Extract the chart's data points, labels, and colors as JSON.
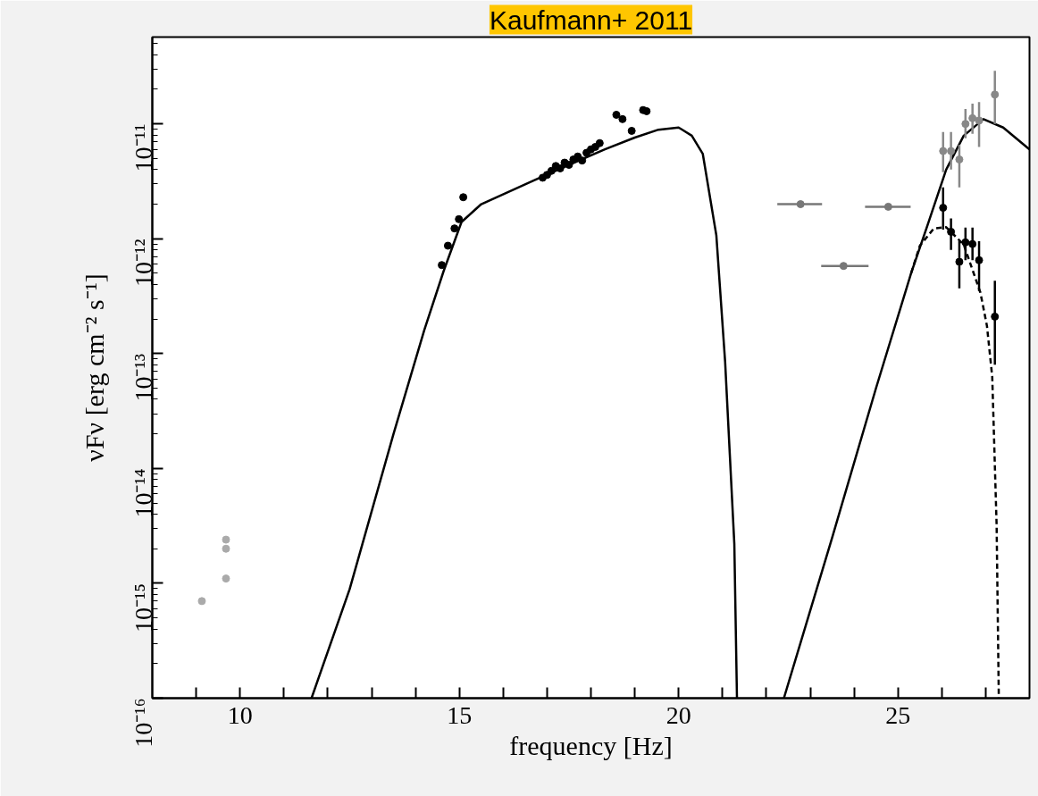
{
  "chart_data": {
    "type": "scatter",
    "title": "Kaufmann+ 2011",
    "xlabel": "frequency [Hz]",
    "ylabel": "νFν [erg cm⁻² s⁻¹]",
    "log": "y",
    "grid": false,
    "marker": "circle",
    "xlim": [
      8,
      28
    ],
    "ylim": [
      1e-16,
      5.7e-11
    ],
    "xticks": [
      {
        "value": 9,
        "label": null
      },
      10,
      {
        "value": 11,
        "label": null
      },
      {
        "value": 12,
        "label": null
      },
      {
        "value": 13,
        "label": null
      },
      {
        "value": 14,
        "label": null
      },
      15,
      {
        "value": 16,
        "label": null
      },
      {
        "value": 17,
        "label": null
      },
      {
        "value": 18,
        "label": null
      },
      {
        "value": 19,
        "label": null
      },
      20,
      {
        "value": 21,
        "label": null
      },
      {
        "value": 22,
        "label": null
      },
      {
        "value": 23,
        "label": null
      },
      {
        "value": 24,
        "label": null
      },
      25,
      {
        "value": 26,
        "label": null
      },
      {
        "value": 27,
        "label": null
      }
    ],
    "yticks": [
      {
        "value": 1e-16,
        "label": "10⁻¹⁶"
      },
      {
        "value": 1e-15,
        "label": "10⁻¹⁵"
      },
      {
        "value": 1e-14,
        "label": "10⁻¹⁴"
      },
      {
        "value": 1e-13,
        "label": "10⁻¹³"
      },
      {
        "value": 1e-12,
        "label": "10⁻¹²"
      },
      {
        "value": 1e-11,
        "label": "10⁻¹¹"
      }
    ],
    "series": [
      {
        "type": "line",
        "marker": "none",
        "color": "#000000",
        "x": [
          11.63,
          12.5,
          13.5,
          14.2,
          14.64,
          15.05,
          15.5,
          16.68,
          17.5,
          18.32,
          19.0,
          19.54,
          20.0,
          20.3,
          20.55,
          20.86,
          21.06,
          21.27,
          21.33
        ],
        "values": [
          1e-16,
          8.9e-16,
          2e-14,
          1.6e-13,
          5.2e-13,
          1.4e-12,
          2e-12,
          3.2e-12,
          4.4e-12,
          6e-12,
          7.6e-12,
          8.9e-12,
          9.3e-12,
          7.9e-12,
          5.5e-12,
          1.07e-12,
          8.5e-14,
          2.2e-15,
          1e-16
        ]
      },
      {
        "type": "line",
        "marker": "none",
        "color": "#000000",
        "x": [
          22.4,
          23.5,
          24.5,
          25.3,
          25.7,
          26.1,
          26.5,
          26.95,
          27.4,
          28.0
        ],
        "values": [
          1e-16,
          2.5e-15,
          5e-14,
          5e-13,
          1.4e-12,
          4e-12,
          7.9e-12,
          1.1e-11,
          9.3e-12,
          6e-12
        ]
      },
      {
        "type": "line",
        "marker": "none",
        "color": "#000000",
        "line_style": "dashed",
        "x": [
          25.3,
          25.5,
          25.82,
          26.1,
          26.5,
          26.88,
          27.03,
          27.15,
          27.25,
          27.3
        ],
        "values": [
          5e-13,
          8.7e-13,
          1.23e-12,
          1.26e-12,
          8.9e-13,
          3.4e-13,
          1.74e-13,
          6.3e-14,
          3.2e-15,
          1e-16
        ]
      },
      {
        "color": "#aaaaaa",
        "x": [
          9.13,
          9.68,
          9.68,
          9.68
        ],
        "values": [
          7e-16,
          2.4e-15,
          2e-15,
          1.1e-15
        ]
      },
      {
        "color": "#000000",
        "x": [
          14.6,
          14.74,
          14.89,
          14.99,
          15.09,
          16.9,
          17.0,
          17.1,
          17.2,
          17.3,
          17.4,
          17.5,
          17.6,
          17.7,
          17.8,
          17.9,
          18.0,
          18.1,
          18.2,
          18.58,
          18.72,
          18.93,
          19.19,
          19.27
        ],
        "values": [
          5.9e-13,
          8.7e-13,
          1.23e-12,
          1.48e-12,
          2.3e-12,
          3.4e-12,
          3.6e-12,
          3.9e-12,
          4.3e-12,
          4.1e-12,
          4.6e-12,
          4.4e-12,
          4.9e-12,
          5.2e-12,
          4.8e-12,
          5.6e-12,
          6e-12,
          6.3e-12,
          6.8e-12,
          1.2e-11,
          1.1e-11,
          8.7e-12,
          1.32e-11,
          1.29e-11
        ]
      },
      {
        "color": "#777777",
        "x": [
          22.78,
          23.76,
          24.78
        ],
        "values": [
          2e-12,
          5.8e-13,
          1.9e-12
        ],
        "xerrors": [
          [
            22.25,
            23.27
          ],
          [
            23.25,
            24.33
          ],
          [
            24.25,
            25.29
          ]
        ]
      },
      {
        "color": "#888888",
        "x": [
          26.03,
          26.21,
          26.4,
          26.54,
          26.7,
          26.85,
          27.21
        ],
        "values": [
          5.8e-12,
          5.8e-12,
          4.9e-12,
          1e-11,
          1.12e-11,
          1.07e-11,
          1.8e-11
        ],
        "errors": [
          [
            3.8e-12,
            8.5e-12
          ],
          [
            4e-12,
            8.5e-12
          ],
          [
            2.8e-12,
            6.6e-12
          ],
          [
            7.5e-12,
            1.35e-11
          ],
          [
            8.2e-12,
            1.5e-11
          ],
          [
            6.3e-12,
            1.55e-11
          ],
          [
            1e-11,
            2.9e-11
          ]
        ]
      },
      {
        "color": "#000000",
        "x": [
          26.03,
          26.21,
          26.4,
          26.54,
          26.7,
          26.85,
          27.21
        ],
        "values": [
          1.86e-12,
          1.15e-12,
          6.3e-13,
          9.3e-13,
          9e-13,
          6.5e-13,
          2.1e-13
        ],
        "errors": [
          [
            1.2e-12,
            2.8e-12
          ],
          [
            8e-13,
            1.5e-12
          ],
          [
            3.7e-13,
            9.5e-13
          ],
          [
            6.5e-13,
            1.25e-12
          ],
          [
            6.5e-13,
            1.25e-12
          ],
          [
            3.5e-13,
            9.5e-13
          ],
          [
            8e-14,
            4.3e-13
          ]
        ]
      }
    ]
  }
}
